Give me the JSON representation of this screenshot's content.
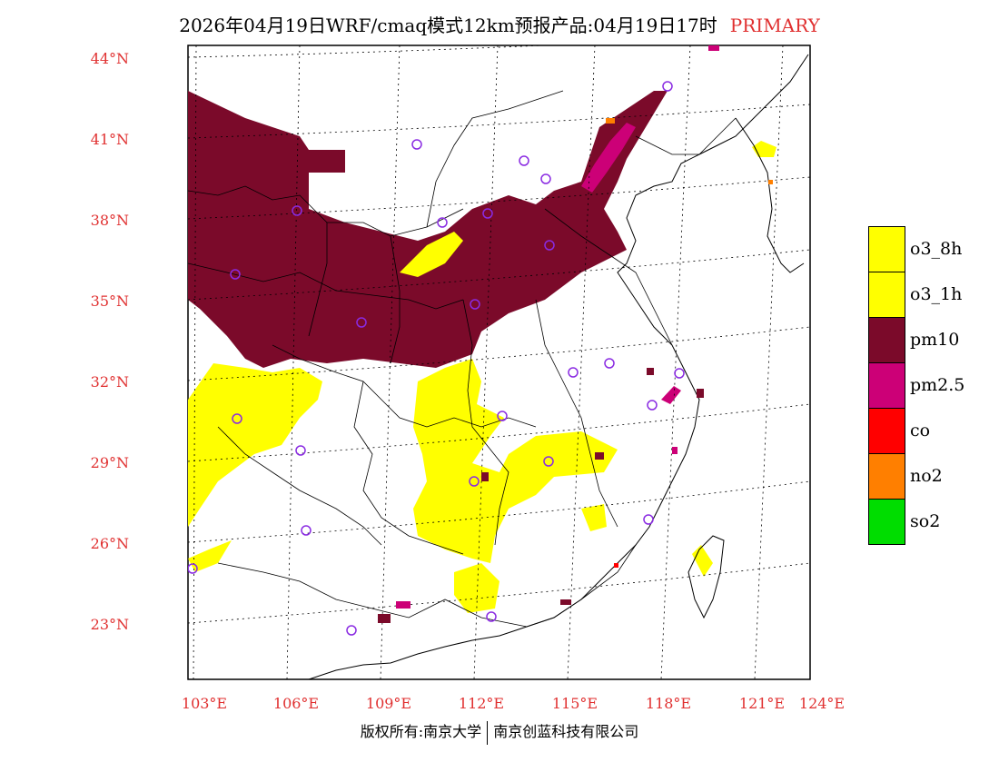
{
  "title": {
    "text": "2026年04月19日WRF/cmaq模式12km预报产品:04月19日17时",
    "tag": "PRIMARY"
  },
  "axes": {
    "lat_labels": [
      "44°N",
      "41°N",
      "38°N",
      "35°N",
      "32°N",
      "29°N",
      "26°N",
      "23°N"
    ],
    "lon_labels": [
      "103°E",
      "106°E",
      "109°E",
      "112°E",
      "115°E",
      "118°E",
      "121°E",
      "124°E"
    ]
  },
  "legend": {
    "items": [
      {
        "label": "o3_8h",
        "color": "#ffff00"
      },
      {
        "label": "o3_1h",
        "color": "#ffff00"
      },
      {
        "label": "pm10",
        "color": "#7b0a2a"
      },
      {
        "label": "pm2.5",
        "color": "#cc0077"
      },
      {
        "label": "co",
        "color": "#ff0000"
      },
      {
        "label": "no2",
        "color": "#ff7f00"
      },
      {
        "label": "so2",
        "color": "#00dd00"
      }
    ]
  },
  "footer": {
    "left": "版权所有:南京大学",
    "right": "南京创蓝科技有限公司"
  },
  "colors": {
    "pm10": "#7b0a2a",
    "pm25": "#cc0077",
    "o3": "#ffff00",
    "no2": "#ff7f00",
    "label_red": "#e03030",
    "city_marker": "#8a2be2"
  }
}
